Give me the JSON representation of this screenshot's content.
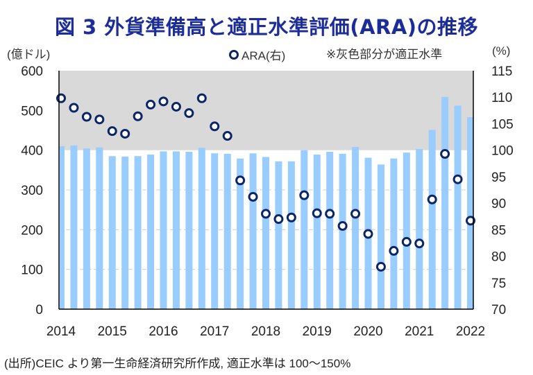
{
  "title": "図 3  外貨準備高と適正水準評価(ARA)の推移",
  "header": {
    "unit_left": "(億ドル)",
    "unit_right": "(%)",
    "legend_label": "ARA(右)",
    "note": "※灰色部分が適正水準"
  },
  "source": "(出所)CEIC より第一生命経済研究所作成, 適正水準は 100〜150%",
  "colors": {
    "title": "#1c2d9a",
    "bars": "#99ccff",
    "marker_stroke": "#0b2566",
    "band": "#d9d9d9"
  },
  "chart_data": {
    "type": "bar",
    "title": "図 3  外貨準備高と適正水準評価(ARA)の推移",
    "xlabel": "",
    "ylabel": "(億ドル)",
    "y2label": "(%)",
    "ylim": [
      0,
      600
    ],
    "y2lim": [
      70,
      115
    ],
    "yticks": [
      0,
      100,
      200,
      300,
      400,
      500,
      600
    ],
    "y2ticks": [
      70,
      75,
      80,
      85,
      90,
      95,
      100,
      105,
      110,
      115
    ],
    "xtick_labels": [
      "2014",
      "2015",
      "2016",
      "2017",
      "2018",
      "2019",
      "2020",
      "2021",
      "2022"
    ],
    "grid": "dashed horizontal at 100, 200, 300",
    "adequacy_band_pct": [
      100,
      150
    ],
    "legend_position": "top-center",
    "categories": [
      "2014Q1",
      "2014Q2",
      "2014Q3",
      "2014Q4",
      "2015Q1",
      "2015Q2",
      "2015Q3",
      "2015Q4",
      "2016Q1",
      "2016Q2",
      "2016Q3",
      "2016Q4",
      "2017Q1",
      "2017Q2",
      "2017Q3",
      "2017Q4",
      "2018Q1",
      "2018Q2",
      "2018Q3",
      "2018Q4",
      "2019Q1",
      "2019Q2",
      "2019Q3",
      "2019Q4",
      "2020Q1",
      "2020Q2",
      "2020Q3",
      "2020Q4",
      "2021Q1",
      "2021Q2",
      "2021Q3",
      "2021Q4",
      "2022Q1"
    ],
    "series": [
      {
        "name": "外貨準備高",
        "type": "bar",
        "axis": "left",
        "values": [
          410,
          412,
          404,
          407,
          385,
          384,
          385,
          389,
          397,
          397,
          396,
          406,
          392,
          391,
          379,
          392,
          383,
          372,
          372,
          400,
          389,
          396,
          391,
          408,
          381,
          364,
          379,
          394,
          403,
          451,
          534,
          512,
          483
        ]
      },
      {
        "name": "ARA(右)",
        "type": "scatter",
        "axis": "right",
        "values": [
          109.8,
          108.0,
          106.3,
          105.8,
          103.6,
          103.1,
          106.4,
          108.6,
          109.2,
          108.2,
          107.0,
          109.8,
          104.5,
          102.7,
          94.3,
          91.2,
          88.0,
          87.0,
          87.3,
          91.5,
          88.1,
          88.0,
          85.7,
          88.0,
          84.2,
          78.0,
          81.0,
          82.7,
          82.4,
          90.7,
          99.3,
          94.5,
          86.7
        ]
      }
    ]
  }
}
